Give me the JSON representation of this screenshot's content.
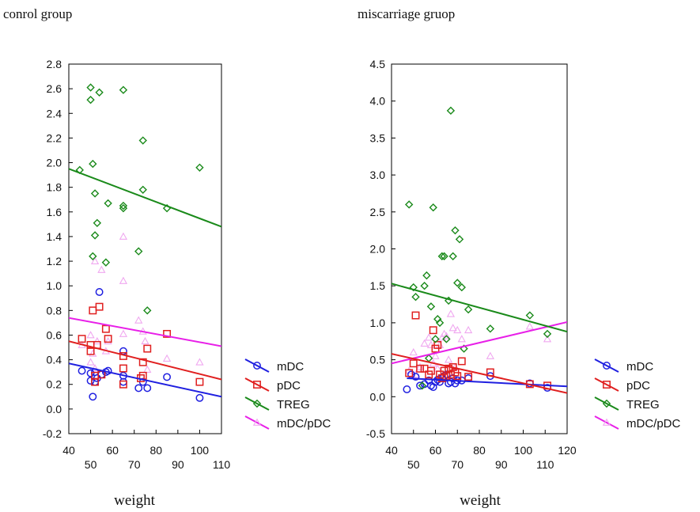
{
  "colors": {
    "mDC": "#1f1fe0",
    "pDC": "#e01f1f",
    "TREG": "#1a8a1a",
    "mDC/pDC": "#e81fe8",
    "mDC/pDC_points": "#f0a8f0"
  },
  "legend_entries": [
    "mDC",
    "pDC",
    "TREG",
    "mDC/pDC"
  ],
  "chart_data": [
    {
      "type": "scatter",
      "title": "conrol group",
      "xlabel": "weight",
      "ylabel": "",
      "xlim": [
        40,
        110
      ],
      "ylim": [
        -0.2,
        2.8
      ],
      "x_tick_labels": [
        "40",
        "50",
        "60",
        "70",
        "80",
        "90",
        "100",
        "110"
      ],
      "y_tick_labels": [
        "-0.2",
        "0.0",
        "0.2",
        "0.4",
        "0.6",
        "0.8",
        "1.0",
        "1.2",
        "1.4",
        "1.6",
        "1.8",
        "2.0",
        "2.2",
        "2.4",
        "2.6",
        "2.8"
      ],
      "series": [
        {
          "name": "mDC",
          "marker": "circle",
          "points": [
            [
              46,
              0.31
            ],
            [
              50,
              0.29
            ],
            [
              50,
              0.23
            ],
            [
              51,
              0.1
            ],
            [
              52,
              0.22
            ],
            [
              52,
              0.3
            ],
            [
              53,
              0.25
            ],
            [
              54,
              0.95
            ],
            [
              55,
              0.28
            ],
            [
              57,
              0.3
            ],
            [
              58,
              0.31
            ],
            [
              65,
              0.47
            ],
            [
              65,
              0.27
            ],
            [
              65,
              0.22
            ],
            [
              72,
              0.17
            ],
            [
              74,
              0.22
            ],
            [
              76,
              0.17
            ],
            [
              85,
              0.26
            ],
            [
              100,
              0.09
            ]
          ],
          "trend": [
            [
              40,
              0.37
            ],
            [
              110,
              0.1
            ]
          ]
        },
        {
          "name": "pDC",
          "marker": "square",
          "points": [
            [
              46,
              0.57
            ],
            [
              50,
              0.52
            ],
            [
              50,
              0.47
            ],
            [
              51,
              0.8
            ],
            [
              52,
              0.27
            ],
            [
              52,
              0.22
            ],
            [
              53,
              0.52
            ],
            [
              54,
              0.83
            ],
            [
              55,
              0.28
            ],
            [
              57,
              0.65
            ],
            [
              58,
              0.57
            ],
            [
              65,
              0.43
            ],
            [
              65,
              0.33
            ],
            [
              65,
              0.2
            ],
            [
              73,
              0.25
            ],
            [
              74,
              0.38
            ],
            [
              74,
              0.27
            ],
            [
              76,
              0.49
            ],
            [
              85,
              0.61
            ],
            [
              100,
              0.22
            ]
          ],
          "trend": [
            [
              40,
              0.55
            ],
            [
              110,
              0.24
            ]
          ]
        },
        {
          "name": "TREG",
          "marker": "diamond",
          "points": [
            [
              45,
              1.94
            ],
            [
              50,
              2.61
            ],
            [
              50,
              2.51
            ],
            [
              51,
              1.99
            ],
            [
              51,
              1.24
            ],
            [
              52,
              1.41
            ],
            [
              52,
              1.75
            ],
            [
              53,
              1.51
            ],
            [
              54,
              2.57
            ],
            [
              57,
              1.19
            ],
            [
              58,
              1.67
            ],
            [
              65,
              2.59
            ],
            [
              65,
              1.63
            ],
            [
              65,
              1.65
            ],
            [
              72,
              1.28
            ],
            [
              74,
              2.18
            ],
            [
              74,
              1.78
            ],
            [
              76,
              0.8
            ],
            [
              85,
              1.63
            ],
            [
              100,
              1.96
            ]
          ],
          "trend": [
            [
              40,
              1.95
            ],
            [
              110,
              1.48
            ]
          ]
        },
        {
          "name": "mDC/pDC",
          "marker": "triangle",
          "points": [
            [
              46,
              0.52
            ],
            [
              50,
              0.6
            ],
            [
              50,
              0.38
            ],
            [
              51,
              0.45
            ],
            [
              52,
              1.2
            ],
            [
              52,
              0.33
            ],
            [
              53,
              0.55
            ],
            [
              55,
              1.13
            ],
            [
              57,
              0.47
            ],
            [
              58,
              0.55
            ],
            [
              65,
              1.4
            ],
            [
              65,
              1.04
            ],
            [
              65,
              0.61
            ],
            [
              72,
              0.72
            ],
            [
              74,
              0.63
            ],
            [
              75,
              0.55
            ],
            [
              76,
              0.32
            ],
            [
              85,
              0.41
            ],
            [
              100,
              0.38
            ]
          ],
          "trend": [
            [
              40,
              0.74
            ],
            [
              110,
              0.51
            ]
          ]
        }
      ]
    },
    {
      "type": "scatter",
      "title": "miscarriage gruop",
      "xlabel": "weight",
      "ylabel": "",
      "xlim": [
        40,
        120
      ],
      "ylim": [
        -0.5,
        4.5
      ],
      "x_tick_labels": [
        "40",
        "50",
        "60",
        "70",
        "80",
        "90",
        "100",
        "110",
        "120"
      ],
      "y_tick_labels": [
        "-0.5",
        "0.0",
        "0.5",
        "1.0",
        "1.5",
        "2.0",
        "2.5",
        "3.0",
        "3.5",
        "4.0",
        "4.5"
      ],
      "series": [
        {
          "name": "mDC",
          "marker": "circle",
          "points": [
            [
              47,
              0.1
            ],
            [
              49,
              0.3
            ],
            [
              51,
              0.27
            ],
            [
              53,
              0.15
            ],
            [
              55,
              0.17
            ],
            [
              57,
              0.22
            ],
            [
              58,
              0.15
            ],
            [
              59,
              0.13
            ],
            [
              60,
              0.2
            ],
            [
              61,
              0.23
            ],
            [
              62,
              0.2
            ],
            [
              63,
              0.25
            ],
            [
              64,
              0.28
            ],
            [
              65,
              0.3
            ],
            [
              66,
              0.18
            ],
            [
              67,
              0.2
            ],
            [
              68,
              0.25
            ],
            [
              69,
              0.18
            ],
            [
              70,
              0.22
            ],
            [
              72,
              0.22
            ],
            [
              75,
              0.25
            ],
            [
              85,
              0.28
            ],
            [
              103,
              0.18
            ],
            [
              111,
              0.12
            ]
          ],
          "trend": [
            [
              47,
              0.25
            ],
            [
              120,
              0.14
            ]
          ]
        },
        {
          "name": "pDC",
          "marker": "square",
          "points": [
            [
              48,
              0.32
            ],
            [
              50,
              0.45
            ],
            [
              51,
              1.1
            ],
            [
              53,
              0.38
            ],
            [
              55,
              0.38
            ],
            [
              57,
              0.3
            ],
            [
              58,
              0.35
            ],
            [
              59,
              0.9
            ],
            [
              60,
              0.65
            ],
            [
              61,
              0.7
            ],
            [
              62,
              0.3
            ],
            [
              63,
              0.25
            ],
            [
              64,
              0.35
            ],
            [
              65,
              0.28
            ],
            [
              66,
              0.38
            ],
            [
              67,
              0.3
            ],
            [
              68,
              0.4
            ],
            [
              69,
              0.33
            ],
            [
              70,
              0.28
            ],
            [
              72,
              0.48
            ],
            [
              75,
              0.27
            ],
            [
              85,
              0.33
            ],
            [
              103,
              0.17
            ],
            [
              111,
              0.15
            ]
          ],
          "trend": [
            [
              40,
              0.58
            ],
            [
              120,
              0.05
            ]
          ]
        },
        {
          "name": "TREG",
          "marker": "diamond",
          "points": [
            [
              48,
              2.6
            ],
            [
              50,
              1.48
            ],
            [
              51,
              1.35
            ],
            [
              54,
              0.15
            ],
            [
              55,
              1.5
            ],
            [
              56,
              1.64
            ],
            [
              57,
              0.52
            ],
            [
              58,
              1.22
            ],
            [
              59,
              2.56
            ],
            [
              60,
              0.78
            ],
            [
              61,
              1.05
            ],
            [
              62,
              1.0
            ],
            [
              63,
              1.9
            ],
            [
              64,
              1.9
            ],
            [
              65,
              0.78
            ],
            [
              66,
              1.3
            ],
            [
              67,
              3.87
            ],
            [
              68,
              1.9
            ],
            [
              69,
              2.25
            ],
            [
              70,
              1.54
            ],
            [
              71,
              2.13
            ],
            [
              72,
              1.48
            ],
            [
              73,
              0.65
            ],
            [
              75,
              1.18
            ],
            [
              85,
              0.92
            ],
            [
              103,
              1.1
            ],
            [
              111,
              0.85
            ]
          ],
          "trend": [
            [
              40,
              1.53
            ],
            [
              120,
              0.88
            ]
          ]
        },
        {
          "name": "mDC/pDC",
          "marker": "triangle",
          "points": [
            [
              48,
              0.35
            ],
            [
              50,
              0.6
            ],
            [
              51,
              0.3
            ],
            [
              53,
              0.4
            ],
            [
              55,
              0.72
            ],
            [
              57,
              0.8
            ],
            [
              58,
              0.7
            ],
            [
              59,
              0.45
            ],
            [
              60,
              0.55
            ],
            [
              61,
              0.38
            ],
            [
              62,
              0.7
            ],
            [
              63,
              0.8
            ],
            [
              64,
              0.85
            ],
            [
              65,
              0.82
            ],
            [
              66,
              0.5
            ],
            [
              67,
              1.12
            ],
            [
              68,
              0.93
            ],
            [
              69,
              0.4
            ],
            [
              70,
              0.9
            ],
            [
              72,
              0.78
            ],
            [
              75,
              0.9
            ],
            [
              85,
              0.55
            ],
            [
              103,
              0.95
            ],
            [
              111,
              0.78
            ]
          ],
          "trend": [
            [
              40,
              0.45
            ],
            [
              120,
              1.01
            ]
          ]
        }
      ]
    }
  ]
}
